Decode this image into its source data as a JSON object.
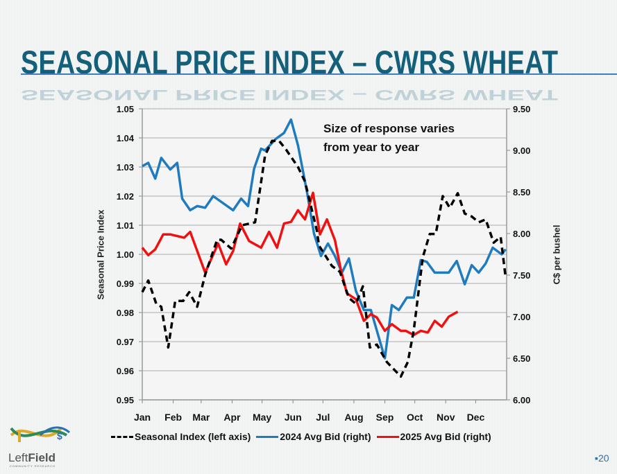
{
  "slide": {
    "title": "SEASONAL PRICE INDEX – CWRS WHEAT",
    "page_number": "20",
    "page_bullet": "▪",
    "logo": {
      "name": "LeftField",
      "part1": "Left",
      "part2": "Field",
      "tagline": "COMMUNITY RESEARCH"
    }
  },
  "colors": {
    "title": "#14607a",
    "seasonal": "#000000",
    "bid_2024": "#1f7bc0",
    "bid_2025": "#f01010"
  },
  "chart_data": {
    "type": "line",
    "title": "",
    "annotation": [
      "Size of response varies",
      "from year to year"
    ],
    "xlabel": "",
    "x_ticks": [
      "Jan",
      "Feb",
      "Mar",
      "Apr",
      "May",
      "Jun",
      "Jul",
      "Aug",
      "Sep",
      "Oct",
      "Nov",
      "Dec"
    ],
    "y_left": {
      "label": "Seasonal Price Index",
      "range": [
        0.95,
        1.05
      ],
      "ticks": [
        "0.95",
        "0.96",
        "0.97",
        "0.98",
        "0.99",
        "1.00",
        "1.01",
        "1.02",
        "1.03",
        "1.04",
        "1.05"
      ]
    },
    "y_right": {
      "label": "C$ per bushel",
      "range": [
        6.0,
        9.5
      ],
      "ticks": [
        "6.00",
        "6.50",
        "7.00",
        "7.50",
        "8.00",
        "8.50",
        "9.00",
        "9.50"
      ]
    },
    "grid": "horizontal",
    "legend_position": "bottom",
    "series": [
      {
        "name": "Seasonal Index (left axis)",
        "axis": "left",
        "style": "dashed",
        "color": "#000000",
        "points": [
          [
            "01-01",
            0.987
          ],
          [
            "01-07",
            0.991
          ],
          [
            "01-15",
            0.983
          ],
          [
            "01-20",
            0.982
          ],
          [
            "01-27",
            0.968
          ],
          [
            "02-03",
            0.984
          ],
          [
            "02-11",
            0.984
          ],
          [
            "02-17",
            0.987
          ],
          [
            "02-25",
            0.982
          ],
          [
            "03-05",
            0.993
          ],
          [
            "03-17",
            1.005
          ],
          [
            "03-21",
            1.005
          ],
          [
            "03-31",
            1.002
          ],
          [
            "04-11",
            1.01
          ],
          [
            "04-24",
            1.011
          ],
          [
            "05-04",
            1.034
          ],
          [
            "05-11",
            1.039
          ],
          [
            "05-18",
            1.039
          ],
          [
            "05-25",
            1.036
          ],
          [
            "06-06",
            1.03
          ],
          [
            "06-13",
            1.025
          ],
          [
            "06-25",
            1.008
          ],
          [
            "06-27",
            1.003
          ],
          [
            "07-10",
            0.996
          ],
          [
            "07-18",
            0.994
          ],
          [
            "07-27",
            0.985
          ],
          [
            "08-03",
            0.983
          ],
          [
            "08-10",
            0.989
          ],
          [
            "08-17",
            0.968
          ],
          [
            "08-24",
            0.969
          ],
          [
            "09-03",
            0.963
          ],
          [
            "09-17",
            0.958
          ],
          [
            "09-24",
            0.963
          ],
          [
            "09-30",
            0.974
          ],
          [
            "10-09",
            0.999
          ],
          [
            "10-16",
            1.007
          ],
          [
            "10-22",
            1.007
          ],
          [
            "10-29",
            1.02
          ],
          [
            "11-05",
            1.016
          ],
          [
            "11-13",
            1.021
          ],
          [
            "11-20",
            1.014
          ],
          [
            "11-27",
            1.013
          ],
          [
            "12-04",
            1.011
          ],
          [
            "12-11",
            1.012
          ],
          [
            "12-19",
            1.004
          ],
          [
            "12-26",
            1.006
          ],
          [
            "12-31",
            0.992
          ]
        ]
      },
      {
        "name": "2024 Avg Bid (right)",
        "axis": "right",
        "style": "solid",
        "color": "#1f7bc0",
        "points": [
          [
            "01-01",
            8.81
          ],
          [
            "01-07",
            8.85
          ],
          [
            "01-14",
            8.66
          ],
          [
            "01-20",
            8.91
          ],
          [
            "01-29",
            8.77
          ],
          [
            "02-05",
            8.85
          ],
          [
            "02-10",
            8.42
          ],
          [
            "02-18",
            8.28
          ],
          [
            "02-25",
            8.33
          ],
          [
            "03-05",
            8.31
          ],
          [
            "03-13",
            8.45
          ],
          [
            "04-02",
            8.28
          ],
          [
            "04-10",
            8.42
          ],
          [
            "04-17",
            8.33
          ],
          [
            "04-23",
            8.78
          ],
          [
            "04-30",
            9.02
          ],
          [
            "05-04",
            9.0
          ],
          [
            "05-15",
            9.14
          ],
          [
            "05-23",
            9.21
          ],
          [
            "05-30",
            9.37
          ],
          [
            "06-06",
            9.06
          ],
          [
            "06-15",
            8.5
          ],
          [
            "06-22",
            8.0
          ],
          [
            "06-29",
            7.73
          ],
          [
            "07-06",
            7.88
          ],
          [
            "07-13",
            7.73
          ],
          [
            "07-20",
            7.53
          ],
          [
            "07-27",
            7.7
          ],
          [
            "08-03",
            7.31
          ],
          [
            "08-11",
            7.08
          ],
          [
            "08-18",
            7.08
          ],
          [
            "09-01",
            6.5
          ],
          [
            "09-08",
            7.14
          ],
          [
            "09-15",
            7.08
          ],
          [
            "09-23",
            7.23
          ],
          [
            "09-30",
            7.23
          ],
          [
            "10-07",
            7.68
          ],
          [
            "10-13",
            7.66
          ],
          [
            "10-21",
            7.53
          ],
          [
            "11-04",
            7.53
          ],
          [
            "11-12",
            7.67
          ],
          [
            "11-20",
            7.39
          ],
          [
            "11-27",
            7.62
          ],
          [
            "12-04",
            7.53
          ],
          [
            "12-11",
            7.64
          ],
          [
            "12-18",
            7.83
          ],
          [
            "12-27",
            7.75
          ],
          [
            "12-31",
            7.81
          ]
        ]
      },
      {
        "name": "2025 Avg Bid (right)",
        "axis": "right",
        "style": "solid",
        "color": "#f01010",
        "points": [
          [
            "01-01",
            7.83
          ],
          [
            "01-07",
            7.74
          ],
          [
            "01-14",
            7.81
          ],
          [
            "01-22",
            7.99
          ],
          [
            "01-29",
            7.99
          ],
          [
            "02-12",
            7.95
          ],
          [
            "02-18",
            8.02
          ],
          [
            "03-05",
            7.53
          ],
          [
            "03-18",
            7.88
          ],
          [
            "03-26",
            7.63
          ],
          [
            "04-02",
            7.79
          ],
          [
            "04-09",
            8.12
          ],
          [
            "04-18",
            7.91
          ],
          [
            "04-30",
            7.83
          ],
          [
            "05-08",
            8.02
          ],
          [
            "05-16",
            7.83
          ],
          [
            "05-23",
            8.12
          ],
          [
            "05-30",
            8.14
          ],
          [
            "06-06",
            8.28
          ],
          [
            "06-13",
            8.17
          ],
          [
            "06-21",
            8.49
          ],
          [
            "06-28",
            7.99
          ],
          [
            "07-05",
            8.17
          ],
          [
            "07-13",
            7.92
          ],
          [
            "07-19",
            7.56
          ],
          [
            "07-25",
            7.28
          ],
          [
            "08-03",
            7.21
          ],
          [
            "08-11",
            6.95
          ],
          [
            "08-18",
            7.03
          ],
          [
            "08-24",
            6.99
          ],
          [
            "09-01",
            6.83
          ],
          [
            "09-08",
            6.91
          ],
          [
            "09-17",
            6.83
          ],
          [
            "09-22",
            6.83
          ],
          [
            "09-30",
            6.78
          ],
          [
            "10-07",
            6.83
          ],
          [
            "10-14",
            6.81
          ],
          [
            "10-21",
            6.95
          ],
          [
            "10-28",
            6.88
          ],
          [
            "11-04",
            7.0
          ],
          [
            "11-13",
            7.06
          ]
        ]
      }
    ]
  }
}
